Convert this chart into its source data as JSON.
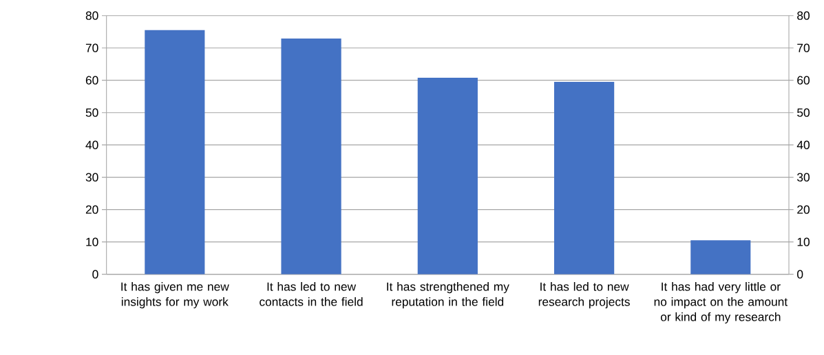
{
  "chart_data": {
    "type": "bar",
    "categories": [
      "It has given me new insights for my work",
      "It has led to new contacts in the field",
      "It has strengthened my reputation in the field",
      "It has led to new research projects",
      "It has had very little or no impact on the amount or kind of my research"
    ],
    "values": [
      75.5,
      72.9,
      60.8,
      59.5,
      10.5
    ],
    "color": "#4472c4",
    "ylim": [
      0,
      80
    ],
    "yticks": [
      0,
      10,
      20,
      30,
      40,
      50,
      60,
      70,
      80
    ],
    "y2lim": [
      0,
      80
    ],
    "y2ticks": [
      0,
      10,
      20,
      30,
      40,
      50,
      60,
      70,
      80
    ],
    "grid": "y"
  }
}
